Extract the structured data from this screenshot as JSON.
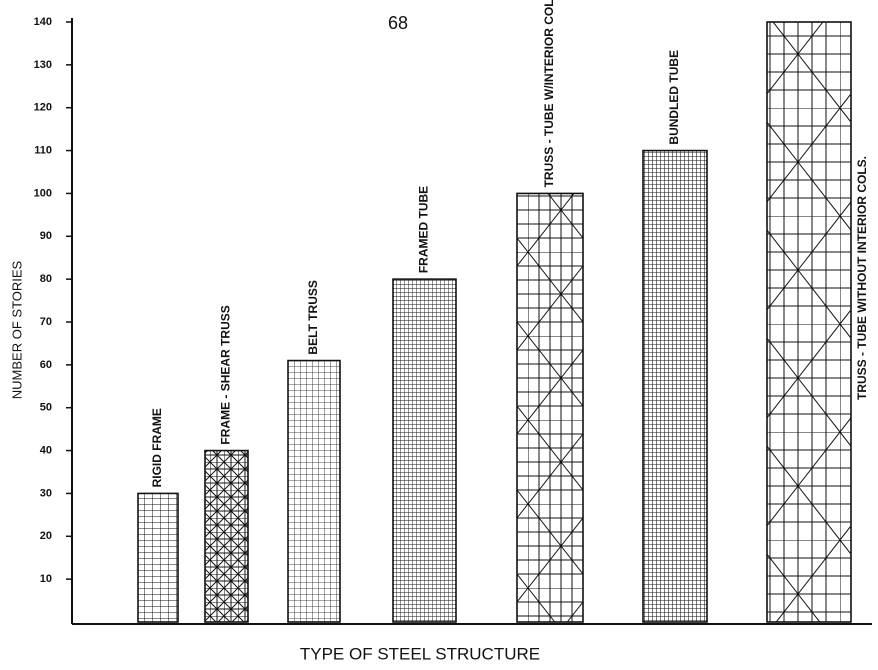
{
  "page_number": "68",
  "chart_data": {
    "type": "bar",
    "x_label": "TYPE OF STEEL STRUCTURE",
    "y_label": "NUMBER OF STORIES",
    "categories": [
      "RIGID FRAME",
      "FRAME - SHEAR TRUSS",
      "BELT TRUSS",
      "FRAMED TUBE",
      "TRUSS - TUBE W/INTERIOR COLS.",
      "BUNDLED TUBE",
      "TRUSS - TUBE WITHOUT INTERIOR COLS."
    ],
    "values": [
      30,
      40,
      61,
      80,
      100,
      110,
      140
    ],
    "color": "#111111",
    "ylim": [
      0,
      140
    ],
    "yticks": [
      10,
      20,
      30,
      40,
      50,
      60,
      70,
      80,
      90,
      100,
      110,
      120,
      130,
      140
    ],
    "grid": false
  }
}
